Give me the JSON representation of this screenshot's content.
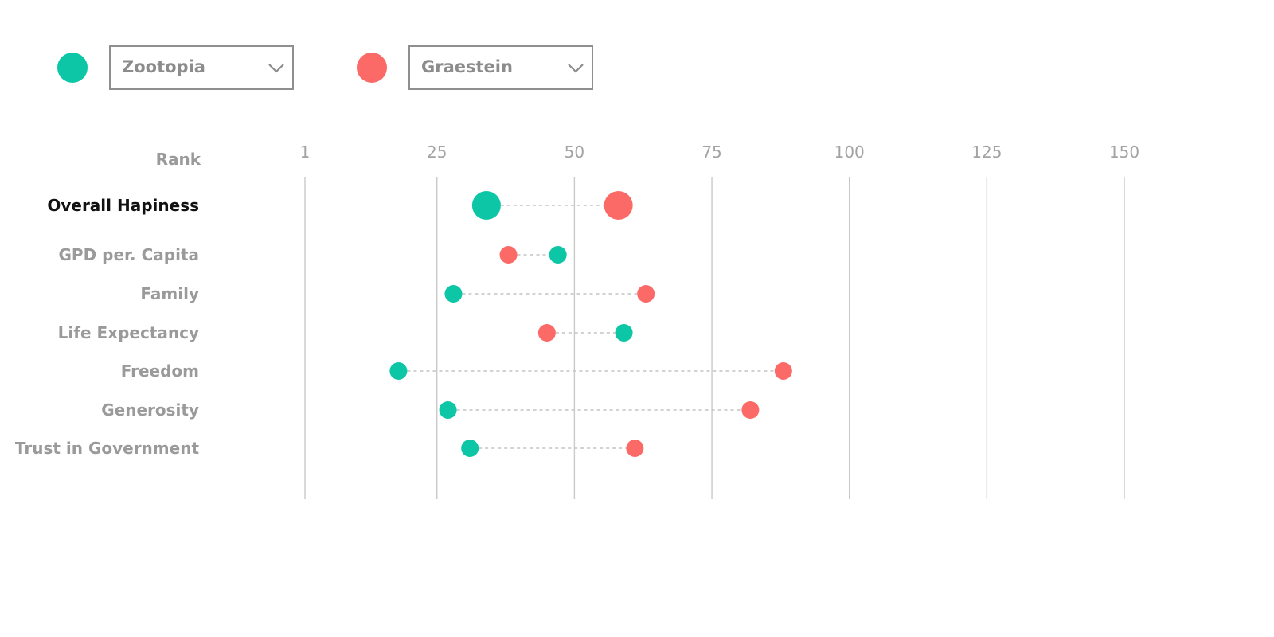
{
  "controls": {
    "series_a": {
      "selected": "Zootopia",
      "color": "#0cc6a5"
    },
    "series_b": {
      "selected": "Graestein",
      "color": "#fc6a67"
    }
  },
  "icons": {
    "dropdown": "chevron-down-icon",
    "legend_marker": "circle"
  },
  "chart_data": {
    "type": "scatter",
    "subtype": "dumbbell",
    "axis_label": "Rank",
    "x_ticks": [
      1,
      25,
      50,
      75,
      100,
      125,
      150
    ],
    "xlim": [
      1,
      150
    ],
    "grid": "vertical",
    "connector": "dashed",
    "categories": [
      "Overall Hapiness",
      "GPD per. Capita",
      "Family",
      "Life Expectancy",
      "Freedom",
      "Generosity",
      "Trust in Government"
    ],
    "highlighted_category": "Overall Hapiness",
    "series": [
      {
        "name": "Zootopia",
        "color": "#0cc6a5",
        "values": [
          34,
          47,
          28,
          59,
          18,
          27,
          31
        ]
      },
      {
        "name": "Graestein",
        "color": "#fc6a67",
        "values": [
          58,
          38,
          63,
          45,
          88,
          82,
          61
        ]
      }
    ]
  }
}
